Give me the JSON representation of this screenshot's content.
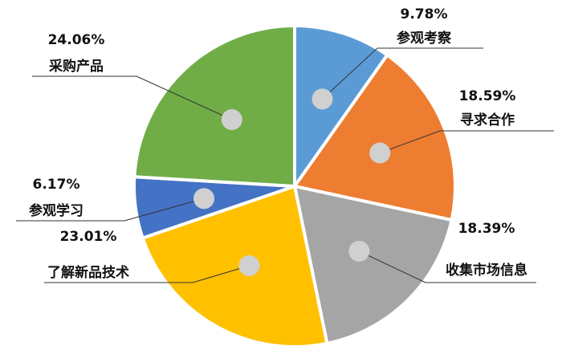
{
  "chart_data": {
    "type": "pie",
    "categories": [
      "参观考察",
      "寻求合作",
      "收集市场信息",
      "了解新品技术",
      "参观学习",
      "采购产品"
    ],
    "values": [
      9.78,
      18.59,
      18.39,
      23.01,
      6.17,
      24.06
    ],
    "value_labels": [
      "9.78%",
      "18.59%",
      "18.39%",
      "23.01%",
      "6.17%",
      "24.06%"
    ],
    "colors": [
      "#5b9bd5",
      "#ed7d31",
      "#a5a5a5",
      "#ffc000",
      "#4472c4",
      "#70ad47"
    ]
  }
}
